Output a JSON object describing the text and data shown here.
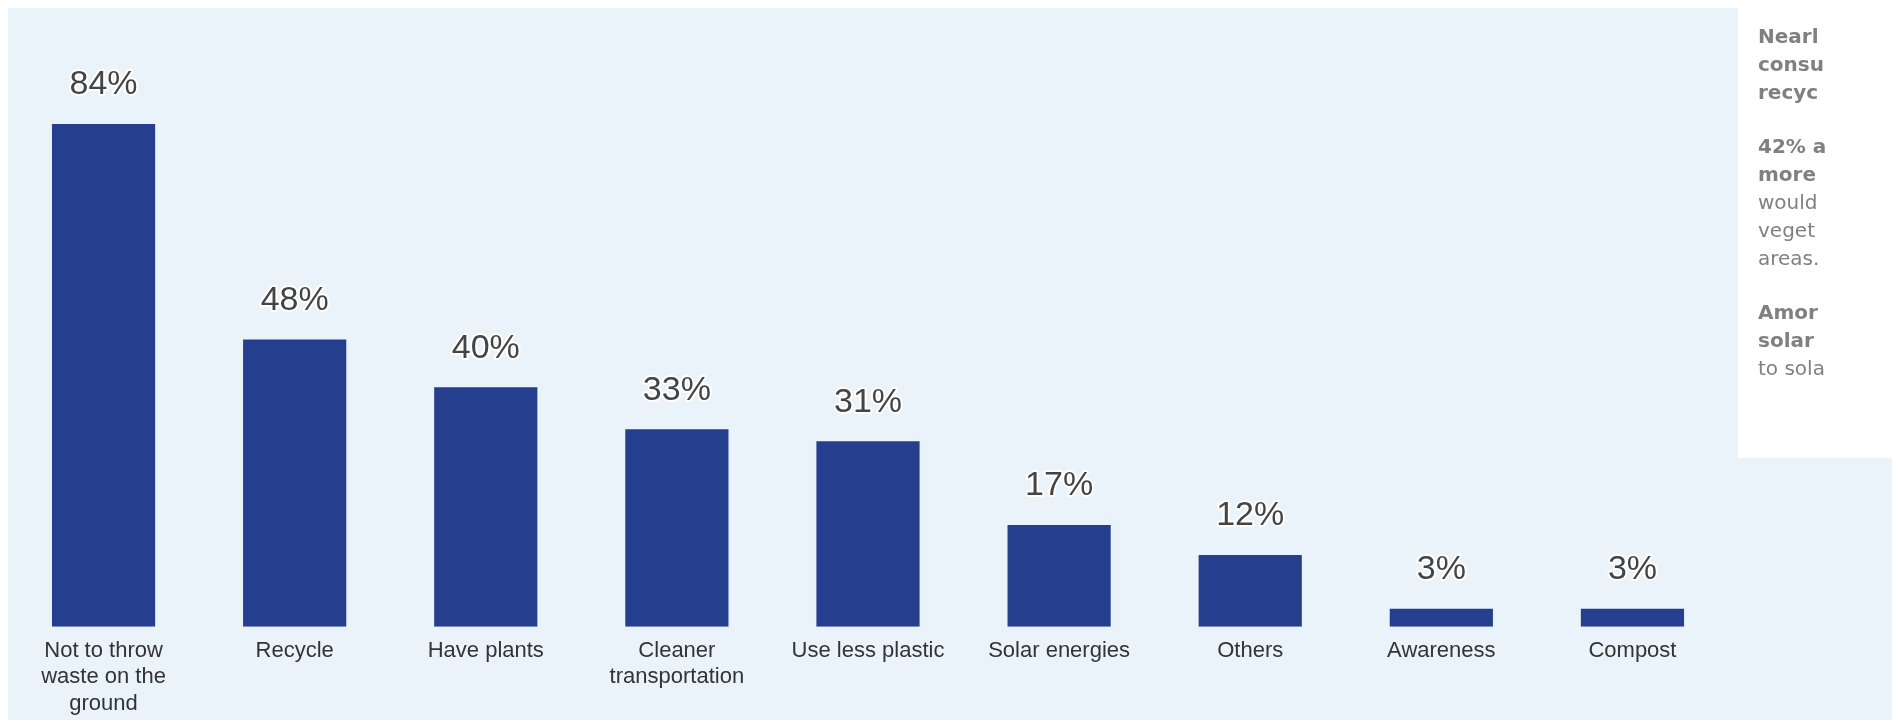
{
  "chart_data": {
    "type": "bar",
    "categories": [
      "Not to throw\nwaste on the\nground",
      "Recycle",
      "Have plants",
      "Cleaner\ntransportation",
      "Use less plastic",
      "Solar energies",
      "Others",
      "Awareness",
      "Compost"
    ],
    "values": [
      84,
      48,
      40,
      33,
      31,
      17,
      12,
      3,
      3
    ],
    "color": "#253f8e",
    "data_labels": true,
    "value_labels": [
      "84%",
      "48%",
      "40%",
      "33%",
      "31%",
      "17%",
      "12%",
      "3%",
      "3%"
    ],
    "annotations": [
      "Nearl\nconsu\nrecyc",
      "42% a\nmore\nwould\nveget\nareas.",
      "Amor\nsolar\nto sola"
    ]
  }
}
